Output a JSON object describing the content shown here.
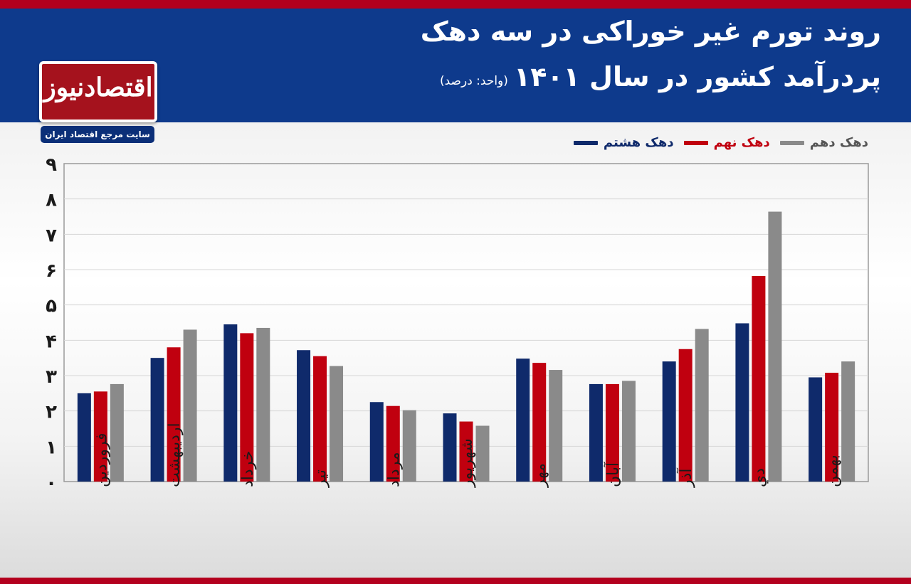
{
  "header": {
    "title_line1": "روند تورم غیر خوراکی در سه دهک",
    "title_line2": "پردرآمد کشور در سال ۱۴۰۱",
    "unit": "(واحد: درصد)"
  },
  "logo": {
    "name": "اقتصادنیوز",
    "tagline": "سایت مرجع اقتصاد ایران"
  },
  "colors": {
    "header_bg": "#0e3a8c",
    "stripe": "#b3001e",
    "logo_bg": "#a5121d",
    "series_1": "#0f2a6b",
    "series_2": "#c0000f",
    "series_3": "#8a8a8a"
  },
  "chart_data": {
    "type": "bar",
    "title": "روند تورم غیر خوراکی در سه دهک پردرآمد کشور در سال ۱۴۰۱",
    "ylabel": "",
    "xlabel": "",
    "ylim": [
      0,
      9
    ],
    "yticks": [
      "۰",
      "۱",
      "۲",
      "۳",
      "۴",
      "۵",
      "۶",
      "۷",
      "۸",
      "۹"
    ],
    "categories": [
      "فروردین",
      "اردیبهشت",
      "خرداد",
      "تیر",
      "مرداد",
      "شهریور",
      "مهر",
      "آبان",
      "آذر",
      "دي",
      "بهمن"
    ],
    "series": [
      {
        "name": "دهک هشتم",
        "color": "#0f2a6b",
        "values": [
          2.5,
          3.5,
          4.45,
          3.72,
          2.25,
          1.93,
          3.48,
          2.76,
          3.4,
          4.48,
          2.95
        ]
      },
      {
        "name": "دهک نهم",
        "color": "#c0000f",
        "values": [
          2.55,
          3.8,
          4.2,
          3.55,
          2.14,
          1.7,
          3.36,
          2.76,
          3.75,
          5.82,
          3.08
        ]
      },
      {
        "name": "دهک دهم",
        "color": "#8a8a8a",
        "values": [
          2.76,
          4.3,
          4.35,
          3.27,
          2.02,
          1.58,
          3.16,
          2.85,
          4.32,
          7.64,
          3.4
        ]
      }
    ],
    "grid": true,
    "legend_position": "top-right"
  }
}
